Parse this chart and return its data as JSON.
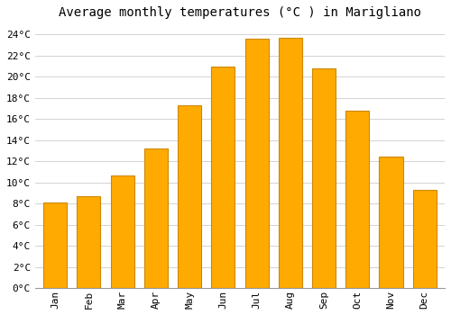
{
  "title": "Average monthly temperatures (°C ) in Marigliano",
  "months": [
    "Jan",
    "Feb",
    "Mar",
    "Apr",
    "May",
    "Jun",
    "Jul",
    "Aug",
    "Sep",
    "Oct",
    "Nov",
    "Dec"
  ],
  "values": [
    8.1,
    8.7,
    10.6,
    13.2,
    17.3,
    20.9,
    23.6,
    23.7,
    20.8,
    16.8,
    12.4,
    9.3
  ],
  "bar_color": "#FFAA00",
  "bar_edge_color": "#CC8800",
  "background_color": "#FFFFFF",
  "plot_bg_color": "#FFFFFF",
  "grid_color": "#CCCCCC",
  "ylim": [
    0,
    25
  ],
  "yticks": [
    0,
    2,
    4,
    6,
    8,
    10,
    12,
    14,
    16,
    18,
    20,
    22,
    24
  ],
  "title_fontsize": 10,
  "tick_fontsize": 8,
  "font_family": "monospace"
}
